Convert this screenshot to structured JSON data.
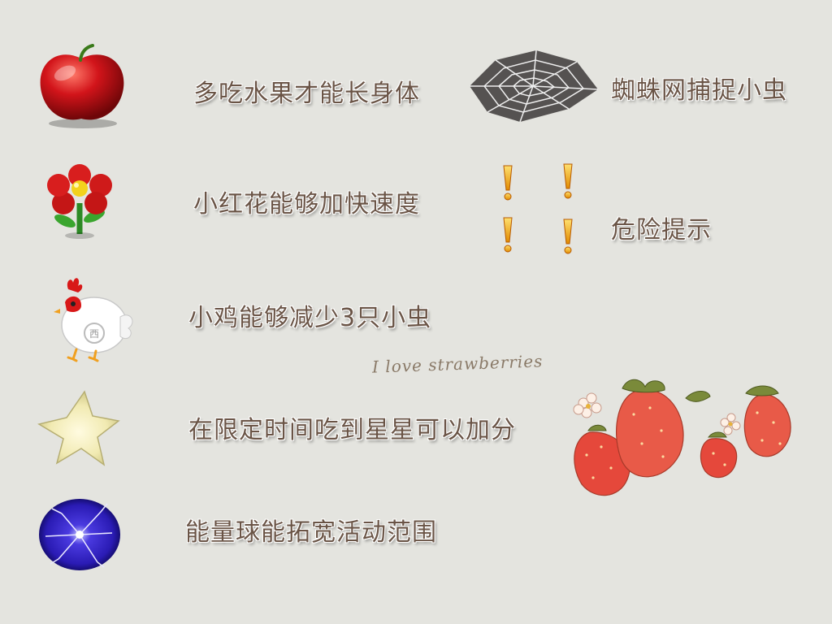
{
  "items": [
    {
      "icon": "apple-icon",
      "label": "多吃水果才能长身体"
    },
    {
      "icon": "red-flower-icon",
      "label": "小红花能够加快速度"
    },
    {
      "icon": "chicken-icon",
      "label": "小鸡能够减少3只小虫"
    },
    {
      "icon": "star-icon",
      "label": "在限定时间吃到星星可以加分"
    },
    {
      "icon": "energy-ball-icon",
      "label": "能量球能拓宽活动范围"
    }
  ],
  "hazards": [
    {
      "icon": "spider-web-icon",
      "label": "蜘蛛网捕捉小虫"
    },
    {
      "icon": "exclamation-marks-icon",
      "label": "危险提示"
    }
  ],
  "decoration": {
    "script_text": "I love strawberries",
    "icon": "strawberries-illustration"
  },
  "colors": {
    "background": "#e4e4df",
    "label_text": "#6a5446",
    "apple": "#d2141a",
    "flower_petal": "#d81e1e",
    "flower_center": "#f3d21c",
    "star": "#f1eab2",
    "energy_ball": "#2a1bb4",
    "exclamation": "#f2b200",
    "strawberry": "#e5483b"
  }
}
